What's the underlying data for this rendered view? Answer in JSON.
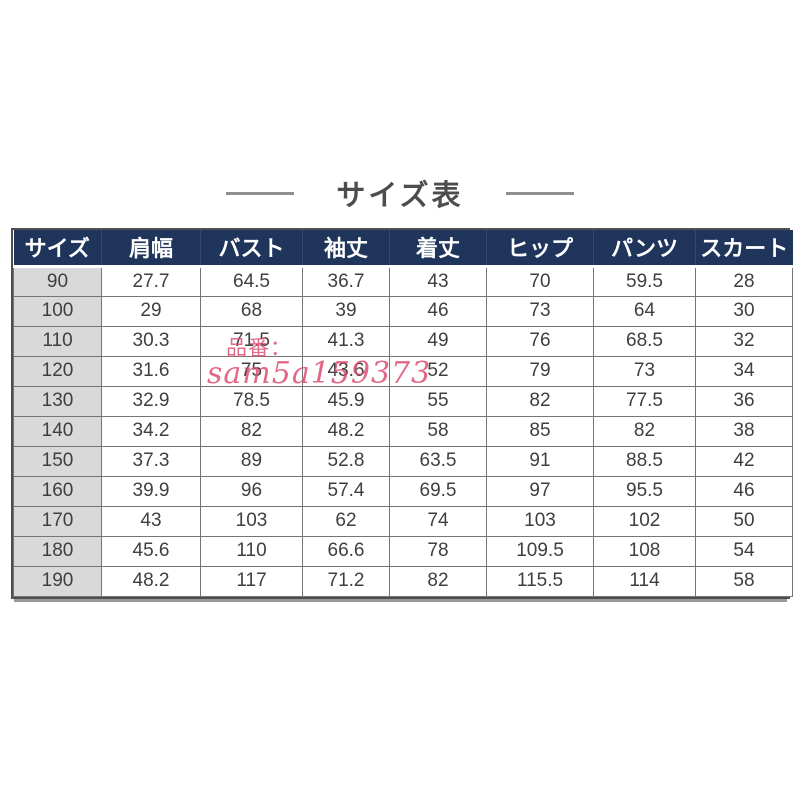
{
  "title": "サイズ表",
  "watermark": {
    "line1": "品番：",
    "line2": "sam5a159373"
  },
  "colors": {
    "header_bg": "#20355c",
    "header_text": "#ffffff",
    "first_col_bg": "#d9d9d9",
    "watermark": "#dd4e74",
    "title_text": "#4d4d4d"
  },
  "chart_data": {
    "type": "table",
    "title": "サイズ表",
    "columns": [
      "サイズ",
      "肩幅",
      "バスト",
      "袖丈",
      "着丈",
      "ヒップ",
      "パンツ",
      "スカート"
    ],
    "rows": [
      [
        "90",
        "27.7",
        "64.5",
        "36.7",
        "43",
        "70",
        "59.5",
        "28"
      ],
      [
        "100",
        "29",
        "68",
        "39",
        "46",
        "73",
        "64",
        "30"
      ],
      [
        "110",
        "30.3",
        "71.5",
        "41.3",
        "49",
        "76",
        "68.5",
        "32"
      ],
      [
        "120",
        "31.6",
        "75",
        "43.6",
        "52",
        "79",
        "73",
        "34"
      ],
      [
        "130",
        "32.9",
        "78.5",
        "45.9",
        "55",
        "82",
        "77.5",
        "36"
      ],
      [
        "140",
        "34.2",
        "82",
        "48.2",
        "58",
        "85",
        "82",
        "38"
      ],
      [
        "150",
        "37.3",
        "89",
        "52.8",
        "63.5",
        "91",
        "88.5",
        "42"
      ],
      [
        "160",
        "39.9",
        "96",
        "57.4",
        "69.5",
        "97",
        "95.5",
        "46"
      ],
      [
        "170",
        "43",
        "103",
        "62",
        "74",
        "103",
        "102",
        "50"
      ],
      [
        "180",
        "45.6",
        "110",
        "66.6",
        "78",
        "109.5",
        "108",
        "54"
      ],
      [
        "190",
        "48.2",
        "117",
        "71.2",
        "82",
        "115.5",
        "114",
        "58"
      ]
    ]
  }
}
